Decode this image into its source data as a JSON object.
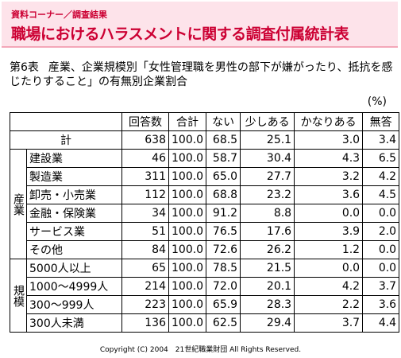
{
  "header": {
    "category": "資料コーナー／調査結果",
    "title": "職場におけるハラスメントに関する調査付属統計表"
  },
  "caption": {
    "number": "第6表",
    "text": "産業、企業規模別「女性管理職を男性の部下が嫌がったり、抵抗を感じたりすること」の有無別企業割合"
  },
  "unit": "(%)",
  "table": {
    "columns": [
      "回答数",
      "合計",
      "ない",
      "少しある",
      "かなりある",
      "無答"
    ],
    "total": {
      "label": "計",
      "cells": [
        "638",
        "100.0",
        "68.5",
        "25.1",
        "3.0",
        "3.4"
      ]
    },
    "groups": [
      {
        "label": "産業",
        "rows": [
          {
            "label": "建設業",
            "cells": [
              "46",
              "100.0",
              "58.7",
              "30.4",
              "4.3",
              "6.5"
            ]
          },
          {
            "label": "製造業",
            "cells": [
              "311",
              "100.0",
              "65.0",
              "27.7",
              "3.2",
              "4.2"
            ]
          },
          {
            "label": "卸売・小売業",
            "cells": [
              "112",
              "100.0",
              "68.8",
              "23.2",
              "3.6",
              "4.5"
            ]
          },
          {
            "label": "金融・保険業",
            "cells": [
              "34",
              "100.0",
              "91.2",
              "8.8",
              "0.0",
              "0.0"
            ]
          },
          {
            "label": "サービス業",
            "cells": [
              "51",
              "100.0",
              "76.5",
              "17.6",
              "3.9",
              "2.0"
            ]
          },
          {
            "label": "その他",
            "cells": [
              "84",
              "100.0",
              "72.6",
              "26.2",
              "1.2",
              "0.0"
            ]
          }
        ]
      },
      {
        "label": "規模",
        "rows": [
          {
            "label": "5000人以上",
            "cells": [
              "65",
              "100.0",
              "78.5",
              "21.5",
              "0.0",
              "0.0"
            ]
          },
          {
            "label": "1000〜4999人",
            "cells": [
              "214",
              "100.0",
              "72.0",
              "20.1",
              "4.2",
              "3.7"
            ]
          },
          {
            "label": "300〜999人",
            "cells": [
              "223",
              "100.0",
              "65.9",
              "28.3",
              "2.2",
              "3.6"
            ]
          },
          {
            "label": "300人未満",
            "cells": [
              "136",
              "100.0",
              "62.5",
              "29.4",
              "3.7",
              "4.4"
            ]
          }
        ]
      }
    ]
  },
  "footer": "Copyright (C) 2004　21世紀職業財団 All Rights Reserved."
}
